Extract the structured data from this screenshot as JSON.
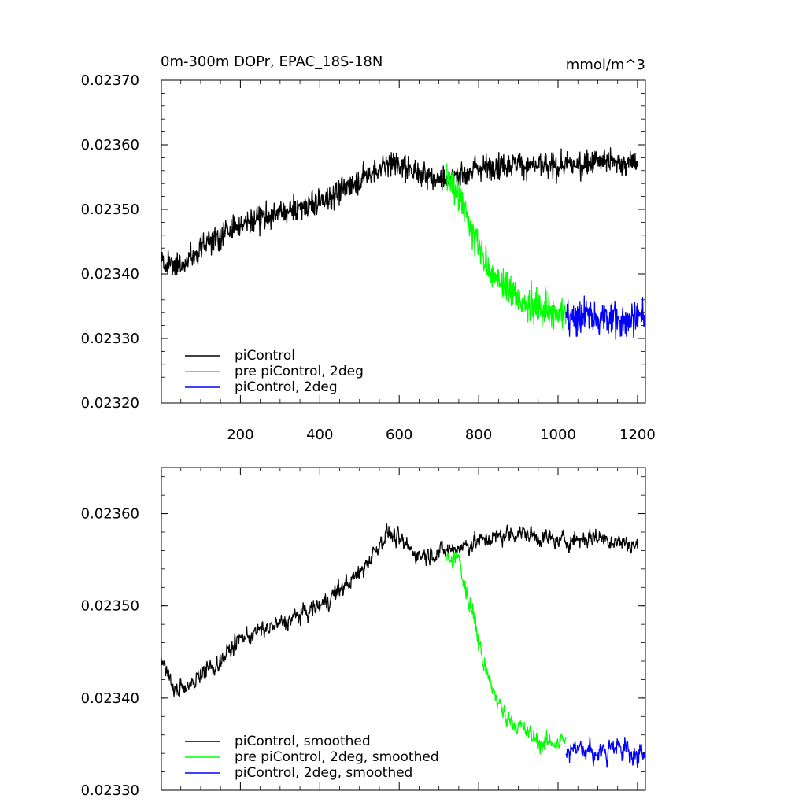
{
  "colors": {
    "axis": "#000000",
    "piControl": "#000000",
    "pre_piControl_2deg": "#00ff00",
    "piControl_2deg": "#0000ff"
  },
  "chart_data": [
    {
      "type": "line",
      "title": "0m-300m DOPr, EPAC_18S-18N",
      "units": "mmol/m^3",
      "xlabel": "",
      "ylabel": "",
      "xlim": [
        1,
        1220
      ],
      "ylim": [
        0.0232,
        0.0237
      ],
      "xticks": [
        200,
        400,
        600,
        800,
        1000,
        1200
      ],
      "xtick_labels": [
        "200",
        "400",
        "600",
        "800",
        "1000",
        "1200"
      ],
      "yticks": [
        0.0232,
        0.0233,
        0.0234,
        0.0235,
        0.0236,
        0.0237
      ],
      "ytick_labels": [
        "0.02320",
        "0.02330",
        "0.02340",
        "0.02350",
        "0.02360",
        "0.02370"
      ],
      "legend_position": "bottom-left",
      "series": [
        {
          "name": "piControl",
          "color": "#000000",
          "x_range": [
            1,
            1200
          ],
          "noise": 2.2e-05,
          "trend": [
            [
              1,
              0.02342
            ],
            [
              60,
              0.023415
            ],
            [
              120,
              0.02345
            ],
            [
              200,
              0.023475
            ],
            [
              300,
              0.023495
            ],
            [
              400,
              0.02351
            ],
            [
              500,
              0.023545
            ],
            [
              580,
              0.023575
            ],
            [
              650,
              0.023555
            ],
            [
              720,
              0.023545
            ],
            [
              800,
              0.023565
            ],
            [
              900,
              0.02357
            ],
            [
              1000,
              0.023565
            ],
            [
              1100,
              0.023575
            ],
            [
              1200,
              0.02357
            ]
          ]
        },
        {
          "name": "pre piControl, 2deg",
          "color": "#00ff00",
          "x_range": [
            720,
            1020
          ],
          "noise": 2.8e-05,
          "trend": [
            [
              720,
              0.02355
            ],
            [
              760,
              0.02351
            ],
            [
              800,
              0.02344
            ],
            [
              840,
              0.023395
            ],
            [
              900,
              0.02336
            ],
            [
              960,
              0.023345
            ],
            [
              1020,
              0.02334
            ]
          ]
        },
        {
          "name": "piControl, 2deg",
          "color": "#0000ff",
          "x_range": [
            1020,
            1220
          ],
          "noise": 3e-05,
          "trend": [
            [
              1020,
              0.023335
            ],
            [
              1100,
              0.02333
            ],
            [
              1150,
              0.023328
            ],
            [
              1220,
              0.023335
            ]
          ]
        }
      ]
    },
    {
      "type": "line",
      "title": "",
      "units": "",
      "xlabel": "",
      "ylabel": "",
      "xlim": [
        1,
        1220
      ],
      "ylim": [
        0.0233,
        0.02365
      ],
      "xticks": [
        200,
        400,
        600,
        800,
        1000,
        1200
      ],
      "xtick_labels": [],
      "yticks": [
        0.0233,
        0.0234,
        0.0235,
        0.0236
      ],
      "ytick_labels": [
        "0.02330",
        "0.02340",
        "0.02350",
        "0.02360"
      ],
      "legend_position": "bottom-left",
      "series": [
        {
          "name": "piControl, smoothed",
          "color": "#000000",
          "x_range": [
            1,
            1200
          ],
          "noise": 1e-05,
          "trend": [
            [
              1,
              0.02344
            ],
            [
              40,
              0.023405
            ],
            [
              80,
              0.02342
            ],
            [
              150,
              0.02344
            ],
            [
              200,
              0.023465
            ],
            [
              300,
              0.02348
            ],
            [
              400,
              0.0235
            ],
            [
              500,
              0.023535
            ],
            [
              570,
              0.02358
            ],
            [
              650,
              0.023555
            ],
            [
              720,
              0.02356
            ],
            [
              800,
              0.02357
            ],
            [
              900,
              0.02358
            ],
            [
              1000,
              0.02357
            ],
            [
              1100,
              0.023575
            ],
            [
              1200,
              0.023565
            ]
          ]
        },
        {
          "name": "pre piControl, 2deg, smoothed",
          "color": "#00ff00",
          "x_range": [
            720,
            1020
          ],
          "noise": 1.1e-05,
          "trend": [
            [
              720,
              0.02355
            ],
            [
              750,
              0.02355
            ],
            [
              790,
              0.02348
            ],
            [
              820,
              0.023425
            ],
            [
              860,
              0.023385
            ],
            [
              900,
              0.02337
            ],
            [
              960,
              0.02335
            ],
            [
              1020,
              0.023355
            ]
          ]
        },
        {
          "name": "piControl, 2deg, smoothed",
          "color": "#0000ff",
          "x_range": [
            1020,
            1220
          ],
          "noise": 1.2e-05,
          "trend": [
            [
              1020,
              0.02334
            ],
            [
              1060,
              0.023345
            ],
            [
              1100,
              0.02334
            ],
            [
              1150,
              0.023345
            ],
            [
              1220,
              0.023335
            ]
          ]
        }
      ]
    }
  ]
}
